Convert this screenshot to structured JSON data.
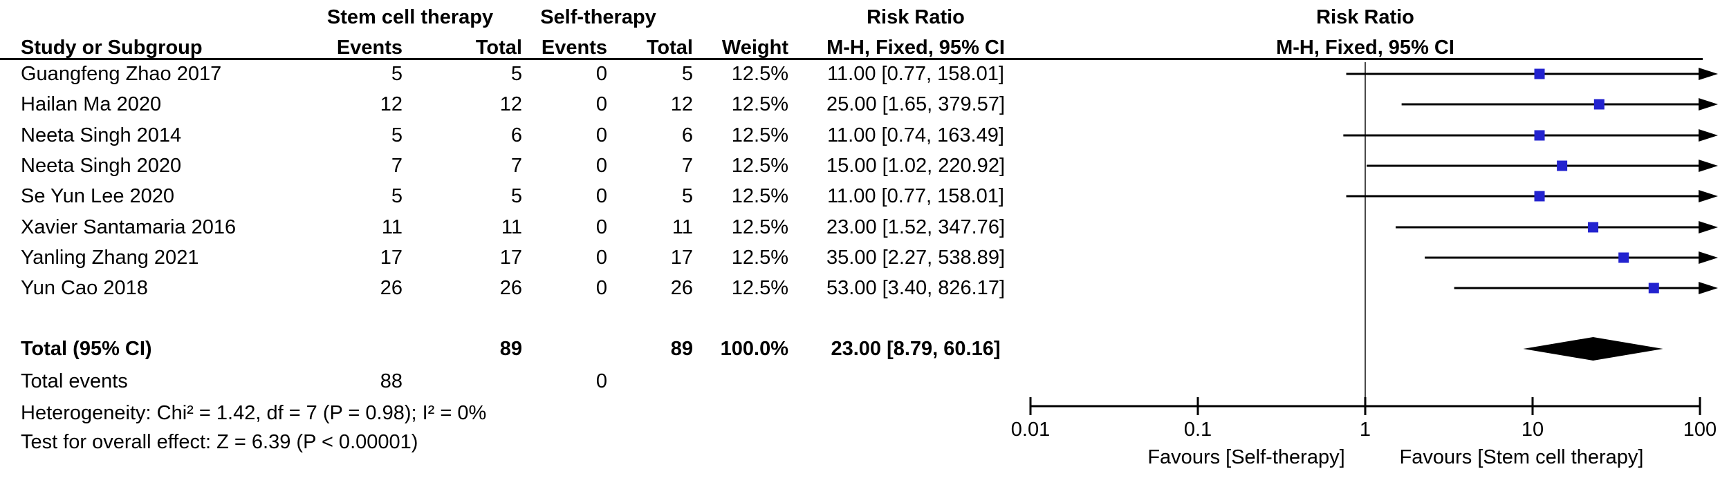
{
  "header": {
    "group_treatment": "Stem cell therapy",
    "group_control": "Self-therapy",
    "risk_ratio": "Risk Ratio",
    "risk_ratio_plot": "Risk Ratio",
    "method": "M-H, Fixed, 95% CI",
    "method_plot": "M-H, Fixed, 95% CI",
    "col_study": "Study or Subgroup",
    "col_events_treatment": "Events",
    "col_total_treatment": "Total",
    "col_events_control": "Events",
    "col_total_control": "Total",
    "col_weight": "Weight"
  },
  "chart_data": {
    "type": "forest",
    "effect_measure": "Risk Ratio",
    "model": "M-H, Fixed, 95% CI",
    "scale": "log10",
    "x_axis": {
      "min": 0.01,
      "max": 100,
      "ticks": [
        "0.01",
        "0.1",
        "1",
        "10",
        "100"
      ],
      "null_line": 1
    },
    "favours_left": "Favours [Self-therapy]",
    "favours_right": "Favours [Stem cell therapy]",
    "marker_color": "#2323cf",
    "diamond_color": "#000000",
    "studies": [
      {
        "name": "Guangfeng Zhao 2017",
        "events_t": 5,
        "total_t": 5,
        "events_c": 0,
        "total_c": 5,
        "weight": "12.5%",
        "rr": 11.0,
        "ci_low": 0.77,
        "ci_high": 158.01,
        "ci_text": "11.00 [0.77, 158.01]"
      },
      {
        "name": "Hailan Ma 2020",
        "events_t": 12,
        "total_t": 12,
        "events_c": 0,
        "total_c": 12,
        "weight": "12.5%",
        "rr": 25.0,
        "ci_low": 1.65,
        "ci_high": 379.57,
        "ci_text": "25.00 [1.65, 379.57]"
      },
      {
        "name": "Neeta Singh 2014",
        "events_t": 5,
        "total_t": 6,
        "events_c": 0,
        "total_c": 6,
        "weight": "12.5%",
        "rr": 11.0,
        "ci_low": 0.74,
        "ci_high": 163.49,
        "ci_text": "11.00 [0.74, 163.49]"
      },
      {
        "name": "Neeta Singh 2020",
        "events_t": 7,
        "total_t": 7,
        "events_c": 0,
        "total_c": 7,
        "weight": "12.5%",
        "rr": 15.0,
        "ci_low": 1.02,
        "ci_high": 220.92,
        "ci_text": "15.00 [1.02, 220.92]"
      },
      {
        "name": "Se Yun Lee 2020",
        "events_t": 5,
        "total_t": 5,
        "events_c": 0,
        "total_c": 5,
        "weight": "12.5%",
        "rr": 11.0,
        "ci_low": 0.77,
        "ci_high": 158.01,
        "ci_text": "11.00 [0.77, 158.01]"
      },
      {
        "name": "Xavier Santamaria 2016",
        "events_t": 11,
        "total_t": 11,
        "events_c": 0,
        "total_c": 11,
        "weight": "12.5%",
        "rr": 23.0,
        "ci_low": 1.52,
        "ci_high": 347.76,
        "ci_text": "23.00 [1.52, 347.76]"
      },
      {
        "name": "Yanling Zhang 2021",
        "events_t": 17,
        "total_t": 17,
        "events_c": 0,
        "total_c": 17,
        "weight": "12.5%",
        "rr": 35.0,
        "ci_low": 2.27,
        "ci_high": 538.89,
        "ci_text": "35.00 [2.27, 538.89]"
      },
      {
        "name": "Yun Cao 2018",
        "events_t": 26,
        "total_t": 26,
        "events_c": 0,
        "total_c": 26,
        "weight": "12.5%",
        "rr": 53.0,
        "ci_low": 3.4,
        "ci_high": 826.17,
        "ci_text": "53.00 [3.40, 826.17]"
      }
    ],
    "total": {
      "label": "Total (95% CI)",
      "total_t": 89,
      "total_c": 89,
      "weight": "100.0%",
      "rr": 23.0,
      "ci_low": 8.79,
      "ci_high": 60.16,
      "ci_text": "23.00 [8.79, 60.16]"
    },
    "total_events": {
      "label": "Total events",
      "events_t": 88,
      "events_c": 0
    },
    "heterogeneity": "Heterogeneity: Chi² = 1.42, df = 7 (P = 0.98); I² = 0%",
    "overall_effect": "Test for overall effect: Z = 6.39 (P < 0.00001)"
  }
}
